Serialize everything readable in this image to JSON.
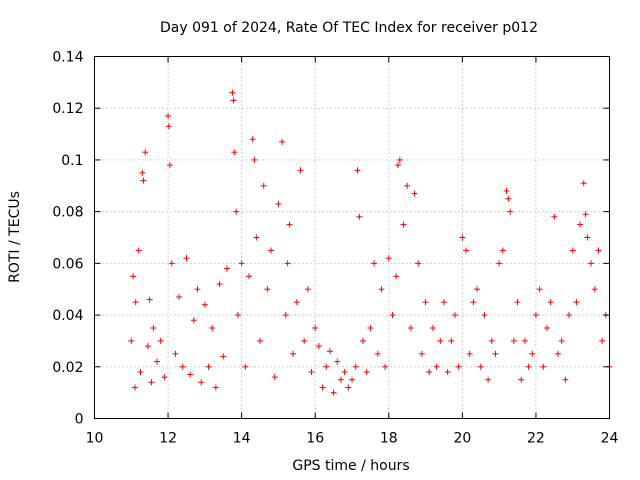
{
  "chart_data": {
    "type": "scatter",
    "title": "Day 091 of 2024, Rate Of TEC Index for receiver p012",
    "xlabel": "GPS time / hours",
    "ylabel": "ROTI / TECUs",
    "xlim": [
      10,
      24
    ],
    "ylim": [
      0,
      0.14
    ],
    "x_ticks": [
      10,
      12,
      14,
      16,
      18,
      20,
      22,
      24
    ],
    "x_tick_labels": [
      "10",
      "12",
      "14",
      "16",
      "18",
      "20",
      "22",
      "24"
    ],
    "y_ticks": [
      0,
      0.02,
      0.04,
      0.06,
      0.08,
      0.1,
      0.12,
      0.14
    ],
    "y_tick_labels": [
      "0",
      "0.02",
      "0.04",
      "0.06",
      "0.08",
      "0.1",
      "0.12",
      "0.14"
    ],
    "grid": true,
    "marker": "+",
    "color": "#ff0000",
    "series": [
      {
        "name": "ROTI p012",
        "x": [
          11.0,
          11.05,
          11.1,
          11.12,
          11.2,
          11.25,
          11.3,
          11.33,
          11.38,
          11.45,
          11.5,
          11.55,
          11.6,
          11.7,
          11.8,
          11.9,
          12.0,
          12.02,
          12.05,
          12.1,
          12.2,
          12.3,
          12.4,
          12.5,
          12.6,
          12.7,
          12.8,
          12.9,
          13.0,
          13.1,
          13.2,
          13.3,
          13.4,
          13.5,
          13.6,
          13.75,
          13.78,
          13.8,
          13.85,
          13.9,
          14.0,
          14.1,
          14.2,
          14.3,
          14.35,
          14.4,
          14.5,
          14.6,
          14.7,
          14.8,
          14.9,
          15.0,
          15.1,
          15.2,
          15.25,
          15.3,
          15.4,
          15.5,
          15.6,
          15.7,
          15.8,
          15.9,
          16.0,
          16.1,
          16.2,
          16.3,
          16.4,
          16.5,
          16.6,
          16.7,
          16.8,
          16.9,
          17.0,
          17.1,
          17.15,
          17.2,
          17.3,
          17.4,
          17.5,
          17.6,
          17.7,
          17.8,
          17.9,
          18.0,
          18.1,
          18.2,
          18.25,
          18.3,
          18.4,
          18.5,
          18.6,
          18.7,
          18.8,
          18.9,
          19.0,
          19.1,
          19.2,
          19.3,
          19.4,
          19.5,
          19.6,
          19.7,
          19.8,
          19.9,
          20.0,
          20.1,
          20.2,
          20.3,
          20.4,
          20.5,
          20.6,
          20.7,
          20.8,
          20.9,
          21.0,
          21.1,
          21.2,
          21.25,
          21.3,
          21.4,
          21.5,
          21.6,
          21.7,
          21.8,
          21.9,
          22.0,
          22.1,
          22.2,
          22.3,
          22.4,
          22.5,
          22.6,
          22.7,
          22.8,
          22.9,
          23.0,
          23.1,
          23.2,
          23.3,
          23.35,
          23.4,
          23.5,
          23.6,
          23.7,
          23.8,
          23.9,
          24.0
        ],
        "y": [
          0.03,
          0.055,
          0.012,
          0.045,
          0.065,
          0.018,
          0.095,
          0.092,
          0.103,
          0.028,
          0.046,
          0.014,
          0.035,
          0.022,
          0.03,
          0.016,
          0.117,
          0.113,
          0.098,
          0.06,
          0.025,
          0.047,
          0.02,
          0.062,
          0.017,
          0.038,
          0.05,
          0.014,
          0.044,
          0.02,
          0.035,
          0.012,
          0.052,
          0.024,
          0.058,
          0.126,
          0.123,
          0.103,
          0.08,
          0.04,
          0.06,
          0.02,
          0.055,
          0.108,
          0.1,
          0.07,
          0.03,
          0.09,
          0.05,
          0.065,
          0.016,
          0.083,
          0.107,
          0.04,
          0.06,
          0.075,
          0.025,
          0.045,
          0.096,
          0.03,
          0.05,
          0.018,
          0.035,
          0.028,
          0.012,
          0.02,
          0.026,
          0.01,
          0.022,
          0.015,
          0.018,
          0.012,
          0.015,
          0.02,
          0.096,
          0.078,
          0.03,
          0.018,
          0.035,
          0.06,
          0.025,
          0.05,
          0.02,
          0.062,
          0.04,
          0.055,
          0.098,
          0.1,
          0.075,
          0.09,
          0.035,
          0.087,
          0.06,
          0.025,
          0.045,
          0.018,
          0.035,
          0.02,
          0.03,
          0.045,
          0.018,
          0.03,
          0.04,
          0.02,
          0.07,
          0.065,
          0.025,
          0.045,
          0.05,
          0.02,
          0.04,
          0.015,
          0.03,
          0.025,
          0.06,
          0.065,
          0.088,
          0.085,
          0.08,
          0.03,
          0.045,
          0.015,
          0.03,
          0.02,
          0.025,
          0.04,
          0.05,
          0.02,
          0.035,
          0.045,
          0.078,
          0.025,
          0.03,
          0.015,
          0.04,
          0.065,
          0.045,
          0.075,
          0.091,
          0.079,
          0.07,
          0.06,
          0.05,
          0.065,
          0.03,
          0.04,
          0.02
        ]
      }
    ]
  }
}
